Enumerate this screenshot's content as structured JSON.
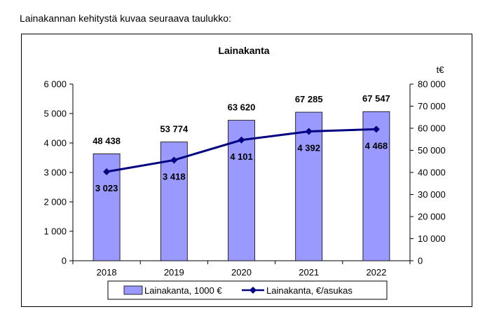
{
  "intro_text": "Lainakannan kehitystä kuvaa seuraava taulukko:",
  "chart_data": {
    "type": "bar+line",
    "title": "Lainakanta",
    "categories": [
      "2018",
      "2019",
      "2020",
      "2021",
      "2022"
    ],
    "series": [
      {
        "name": "Lainakanta, 1000 €",
        "type": "bar",
        "axis": "right",
        "values": [
          48438,
          53774,
          63620,
          67285,
          67547
        ],
        "labels": [
          "48 438",
          "53 774",
          "63 620",
          "67 285",
          "67 547"
        ],
        "color": "#9999ff"
      },
      {
        "name": "Lainakanta, €/asukas",
        "type": "line",
        "axis": "left",
        "values": [
          3023,
          3418,
          4101,
          4392,
          4468
        ],
        "labels": [
          "3 023",
          "3 418",
          "4 101",
          "4 392",
          "4 468"
        ],
        "color": "#000080"
      }
    ],
    "left_axis": {
      "ylim": [
        0,
        6000
      ],
      "ticks": [
        0,
        1000,
        2000,
        3000,
        4000,
        5000,
        6000
      ],
      "tick_labels": [
        "0",
        "1 000",
        "2 000",
        "3 000",
        "4 000",
        "5 000",
        "6 000"
      ]
    },
    "right_axis": {
      "unit": "t€",
      "ylim": [
        0,
        80000
      ],
      "ticks": [
        0,
        10000,
        20000,
        30000,
        40000,
        50000,
        60000,
        70000,
        80000
      ],
      "tick_labels": [
        "0",
        "10 000",
        "20 000",
        "30 000",
        "40 000",
        "50 000",
        "60 000",
        "70 000",
        "80 000"
      ]
    },
    "legend_position": "bottom"
  }
}
